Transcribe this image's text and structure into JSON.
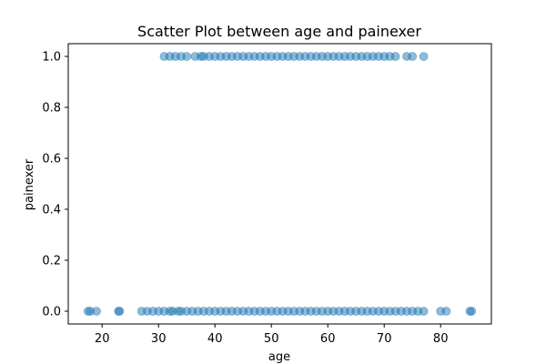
{
  "chart_data": {
    "type": "scatter",
    "title": "Scatter Plot between age and painexer",
    "xlabel": "age",
    "ylabel": "painexer",
    "xlim": [
      14,
      89
    ],
    "ylim": [
      -0.05,
      1.05
    ],
    "xticks": [
      20,
      30,
      40,
      50,
      60,
      70,
      80
    ],
    "yticks": [
      0.0,
      0.2,
      0.4,
      0.6,
      0.8,
      1.0
    ],
    "ytick_labels": [
      "0.0",
      "0.2",
      "0.4",
      "0.6",
      "0.8",
      "1.0"
    ],
    "grid": false,
    "legend": "none",
    "marker_color": "#1f77b4",
    "marker_alpha": 0.5,
    "series": [
      {
        "values": [
          {
            "x": 17.5,
            "y": 0
          },
          {
            "x": 17.9,
            "y": 0
          },
          {
            "x": 19,
            "y": 0
          },
          {
            "x": 22.9,
            "y": 0
          },
          {
            "x": 23.1,
            "y": 0
          },
          {
            "x": 27,
            "y": 0
          },
          {
            "x": 28,
            "y": 0
          },
          {
            "x": 29,
            "y": 0
          },
          {
            "x": 30,
            "y": 0
          },
          {
            "x": 31,
            "y": 0
          },
          {
            "x": 32,
            "y": 0
          },
          {
            "x": 32.5,
            "y": 0
          },
          {
            "x": 33.5,
            "y": 0
          },
          {
            "x": 34,
            "y": 0
          },
          {
            "x": 35,
            "y": 0
          },
          {
            "x": 36,
            "y": 0
          },
          {
            "x": 37,
            "y": 0
          },
          {
            "x": 38,
            "y": 0
          },
          {
            "x": 39,
            "y": 0
          },
          {
            "x": 40,
            "y": 0
          },
          {
            "x": 41,
            "y": 0
          },
          {
            "x": 42,
            "y": 0
          },
          {
            "x": 43,
            "y": 0
          },
          {
            "x": 44,
            "y": 0
          },
          {
            "x": 45,
            "y": 0
          },
          {
            "x": 46,
            "y": 0
          },
          {
            "x": 47,
            "y": 0
          },
          {
            "x": 48,
            "y": 0
          },
          {
            "x": 49,
            "y": 0
          },
          {
            "x": 50,
            "y": 0
          },
          {
            "x": 51,
            "y": 0
          },
          {
            "x": 52,
            "y": 0
          },
          {
            "x": 53,
            "y": 0
          },
          {
            "x": 54,
            "y": 0
          },
          {
            "x": 55,
            "y": 0
          },
          {
            "x": 56,
            "y": 0
          },
          {
            "x": 57,
            "y": 0
          },
          {
            "x": 58,
            "y": 0
          },
          {
            "x": 59,
            "y": 0
          },
          {
            "x": 60,
            "y": 0
          },
          {
            "x": 61,
            "y": 0
          },
          {
            "x": 62,
            "y": 0
          },
          {
            "x": 63,
            "y": 0
          },
          {
            "x": 64,
            "y": 0
          },
          {
            "x": 65,
            "y": 0
          },
          {
            "x": 66,
            "y": 0
          },
          {
            "x": 67,
            "y": 0
          },
          {
            "x": 68,
            "y": 0
          },
          {
            "x": 69,
            "y": 0
          },
          {
            "x": 70,
            "y": 0
          },
          {
            "x": 71,
            "y": 0
          },
          {
            "x": 72,
            "y": 0
          },
          {
            "x": 73,
            "y": 0
          },
          {
            "x": 74,
            "y": 0
          },
          {
            "x": 75,
            "y": 0
          },
          {
            "x": 76,
            "y": 0
          },
          {
            "x": 77,
            "y": 0
          },
          {
            "x": 80,
            "y": 0
          },
          {
            "x": 81,
            "y": 0
          },
          {
            "x": 85.2,
            "y": 0
          },
          {
            "x": 85.5,
            "y": 0
          },
          {
            "x": 31,
            "y": 1
          },
          {
            "x": 32,
            "y": 1
          },
          {
            "x": 33,
            "y": 1
          },
          {
            "x": 34,
            "y": 1
          },
          {
            "x": 35,
            "y": 1
          },
          {
            "x": 36.5,
            "y": 1
          },
          {
            "x": 37.5,
            "y": 1
          },
          {
            "x": 38,
            "y": 1
          },
          {
            "x": 39,
            "y": 1
          },
          {
            "x": 40,
            "y": 1
          },
          {
            "x": 41,
            "y": 1
          },
          {
            "x": 42,
            "y": 1
          },
          {
            "x": 43,
            "y": 1
          },
          {
            "x": 44,
            "y": 1
          },
          {
            "x": 45,
            "y": 1
          },
          {
            "x": 46,
            "y": 1
          },
          {
            "x": 47,
            "y": 1
          },
          {
            "x": 48,
            "y": 1
          },
          {
            "x": 49,
            "y": 1
          },
          {
            "x": 50,
            "y": 1
          },
          {
            "x": 51,
            "y": 1
          },
          {
            "x": 52,
            "y": 1
          },
          {
            "x": 53,
            "y": 1
          },
          {
            "x": 54,
            "y": 1
          },
          {
            "x": 55,
            "y": 1
          },
          {
            "x": 56,
            "y": 1
          },
          {
            "x": 57,
            "y": 1
          },
          {
            "x": 58,
            "y": 1
          },
          {
            "x": 59,
            "y": 1
          },
          {
            "x": 60,
            "y": 1
          },
          {
            "x": 61,
            "y": 1
          },
          {
            "x": 62,
            "y": 1
          },
          {
            "x": 63,
            "y": 1
          },
          {
            "x": 64,
            "y": 1
          },
          {
            "x": 65,
            "y": 1
          },
          {
            "x": 66,
            "y": 1
          },
          {
            "x": 67,
            "y": 1
          },
          {
            "x": 68,
            "y": 1
          },
          {
            "x": 69,
            "y": 1
          },
          {
            "x": 70,
            "y": 1
          },
          {
            "x": 71,
            "y": 1
          },
          {
            "x": 72,
            "y": 1
          },
          {
            "x": 74,
            "y": 1
          },
          {
            "x": 75,
            "y": 1
          },
          {
            "x": 77,
            "y": 1
          }
        ]
      }
    ]
  }
}
